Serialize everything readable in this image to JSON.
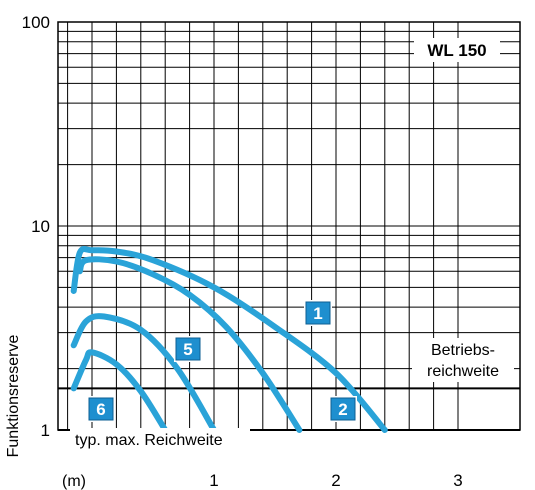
{
  "chart_data": {
    "type": "line",
    "title": "WL 150",
    "ylabel": "Funktionsreserve",
    "xlabel": "",
    "x_unit_label": "(m)",
    "x_ticks": [
      1,
      2,
      3
    ],
    "y_ticks": [
      {
        "value": 1,
        "label": "1"
      },
      {
        "value": 10,
        "label": "10"
      },
      {
        "value": 100,
        "label": "100"
      }
    ],
    "xlim": [
      -0.2,
      3
    ],
    "ylim": [
      0.9,
      100
    ],
    "y_scale": "log",
    "grid": true,
    "operating_range_threshold": 1.6,
    "operating_range_label": "Betriebs-\nreichweite",
    "max_range_label": "typ. max. Reichweite",
    "line_color": "#2aa3d8",
    "badge_color": "#1e8fcf",
    "series": [
      {
        "name": "1",
        "points": [
          [
            -0.15,
            4.8
          ],
          [
            -0.1,
            7.4
          ],
          [
            0.0,
            7.6
          ],
          [
            0.2,
            7.5
          ],
          [
            0.5,
            6.8
          ],
          [
            1.0,
            5.0
          ],
          [
            1.5,
            3.2
          ],
          [
            2.0,
            1.9
          ],
          [
            2.4,
            1.0
          ]
        ]
      },
      {
        "name": "2",
        "points": [
          [
            -0.1,
            6.0
          ],
          [
            -0.05,
            6.8
          ],
          [
            0.2,
            6.7
          ],
          [
            0.5,
            5.8
          ],
          [
            0.8,
            4.6
          ],
          [
            1.1,
            3.2
          ],
          [
            1.4,
            1.9
          ],
          [
            1.7,
            1.0
          ]
        ]
      },
      {
        "name": "5",
        "points": [
          [
            -0.15,
            2.6
          ],
          [
            -0.05,
            3.4
          ],
          [
            0.1,
            3.6
          ],
          [
            0.4,
            3.1
          ],
          [
            0.7,
            2.0
          ],
          [
            1.0,
            1.0
          ]
        ]
      },
      {
        "name": "6",
        "points": [
          [
            -0.15,
            1.6
          ],
          [
            -0.05,
            2.2
          ],
          [
            0.0,
            2.4
          ],
          [
            0.2,
            2.1
          ],
          [
            0.4,
            1.55
          ],
          [
            0.6,
            1.0
          ]
        ]
      }
    ]
  }
}
